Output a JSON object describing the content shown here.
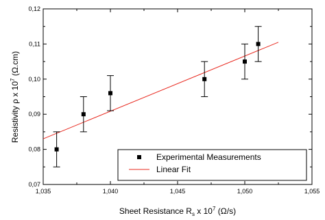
{
  "chart_data": {
    "type": "scatter",
    "xlabel": {
      "pre": "Sheet Resistance R",
      "sub": "s",
      "mid": " x 10",
      "sup": "7",
      "post": " (Ω/s)"
    },
    "ylabel": {
      "pre": "Resistivity ρ x 10",
      "sup": "7",
      "post": " (Ω.cm)"
    },
    "xlim": [
      1.035,
      1.055
    ],
    "ylim": [
      0.07,
      0.12
    ],
    "xticks": [
      {
        "value": 1.035,
        "label": "1,035"
      },
      {
        "value": 1.04,
        "label": "1,040"
      },
      {
        "value": 1.045,
        "label": "1,045"
      },
      {
        "value": 1.05,
        "label": "1,050"
      },
      {
        "value": 1.055,
        "label": "1,055"
      }
    ],
    "yticks": [
      {
        "value": 0.07,
        "label": "0,07"
      },
      {
        "value": 0.08,
        "label": "0,08"
      },
      {
        "value": 0.09,
        "label": "0,09"
      },
      {
        "value": 0.1,
        "label": "0,10"
      },
      {
        "value": 0.11,
        "label": "0,11"
      },
      {
        "value": 0.12,
        "label": "0,12"
      }
    ],
    "series": [
      {
        "name": "Experimental Measurements",
        "kind": "scatter",
        "color": "#000000",
        "marker": "square",
        "x": [
          1.036,
          1.038,
          1.04,
          1.047,
          1.05,
          1.051
        ],
        "y": [
          0.08,
          0.09,
          0.096,
          0.1,
          0.105,
          0.11
        ],
        "error": [
          0.005,
          0.005,
          0.005,
          0.005,
          0.005,
          0.005
        ]
      },
      {
        "name": "Linear Fit",
        "kind": "line",
        "color": "#e8281e",
        "x": [
          1.035,
          1.0525
        ],
        "y": [
          0.083,
          0.1105
        ]
      }
    ],
    "legend": {
      "position": "bottom-right",
      "boxed": true
    },
    "grid": false
  }
}
